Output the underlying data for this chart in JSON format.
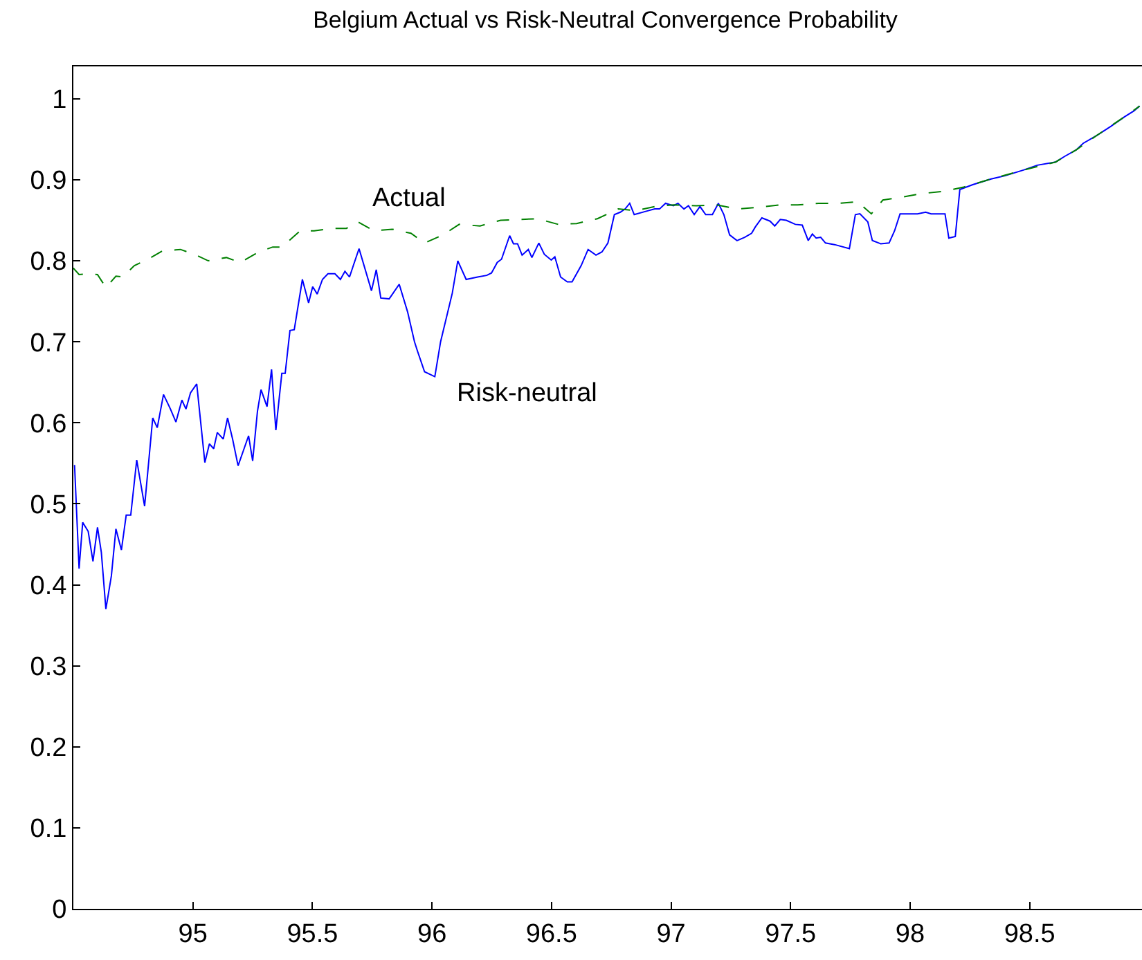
{
  "chart_data": {
    "type": "line",
    "title": "Belgium Actual vs Risk-Neutral Convergence Probability",
    "xlim": [
      94.5,
      98.97
    ],
    "xticks": [
      95,
      95.5,
      96,
      96.5,
      97,
      97.5,
      98,
      98.5
    ],
    "ylim": [
      0,
      1.04
    ],
    "yticks": [
      0,
      0.1,
      0.2,
      0.3,
      0.4,
      0.5,
      0.6,
      0.7,
      0.8,
      0.9,
      1
    ],
    "legend": false,
    "marker": "none",
    "series": [
      {
        "name": "Risk-neutral",
        "color": "#0000ff",
        "line_style": "solid",
        "x": [
          94.505,
          94.524,
          94.539,
          94.562,
          94.582,
          94.601,
          94.617,
          94.636,
          94.659,
          94.678,
          94.701,
          94.721,
          94.74,
          94.765,
          94.798,
          94.832,
          94.851,
          94.877,
          94.906,
          94.929,
          94.954,
          94.971,
          94.99,
          95.016,
          95.05,
          95.069,
          95.087,
          95.102,
          95.127,
          95.145,
          95.166,
          95.189,
          95.214,
          95.233,
          95.25,
          95.27,
          95.285,
          95.31,
          95.329,
          95.347,
          95.372,
          95.386,
          95.406,
          95.424,
          95.458,
          95.484,
          95.501,
          95.52,
          95.542,
          95.565,
          95.594,
          95.617,
          95.636,
          95.655,
          95.695,
          95.747,
          95.767,
          95.786,
          95.821,
          95.863,
          95.898,
          95.927,
          95.94,
          95.969,
          96.012,
          96.036,
          96.085,
          96.108,
          96.143,
          96.191,
          96.229,
          96.249,
          96.273,
          96.291,
          96.325,
          96.341,
          96.358,
          96.377,
          96.403,
          96.418,
          96.447,
          96.47,
          96.499,
          96.514,
          96.538,
          96.566,
          96.586,
          96.624,
          96.653,
          96.686,
          96.711,
          96.736,
          96.763,
          96.788,
          96.808,
          96.827,
          96.846,
          96.894,
          96.932,
          96.952,
          96.977,
          97.01,
          97.029,
          97.054,
          97.073,
          97.097,
          97.121,
          97.145,
          97.173,
          97.198,
          97.221,
          97.245,
          97.276,
          97.308,
          97.337,
          97.353,
          97.38,
          97.414,
          97.434,
          97.457,
          97.482,
          97.52,
          97.549,
          97.574,
          97.591,
          97.607,
          97.626,
          97.646,
          97.684,
          97.746,
          97.771,
          97.79,
          97.823,
          97.842,
          97.877,
          97.912,
          97.935,
          97.958,
          98.031,
          98.065,
          98.088,
          98.146,
          98.162,
          98.189,
          98.208,
          98.262,
          98.339,
          98.397,
          98.474,
          98.532,
          98.609,
          98.647,
          98.695,
          98.724,
          98.782,
          98.84,
          98.898,
          98.936,
          98.96
        ],
        "values": [
          0.548,
          0.42,
          0.477,
          0.466,
          0.429,
          0.471,
          0.44,
          0.37,
          0.411,
          0.469,
          0.443,
          0.486,
          0.486,
          0.554,
          0.497,
          0.606,
          0.594,
          0.635,
          0.617,
          0.601,
          0.628,
          0.617,
          0.637,
          0.648,
          0.551,
          0.574,
          0.568,
          0.588,
          0.58,
          0.606,
          0.58,
          0.547,
          0.568,
          0.584,
          0.553,
          0.614,
          0.641,
          0.62,
          0.666,
          0.591,
          0.661,
          0.661,
          0.714,
          0.715,
          0.777,
          0.748,
          0.768,
          0.759,
          0.777,
          0.784,
          0.784,
          0.777,
          0.787,
          0.78,
          0.815,
          0.763,
          0.789,
          0.754,
          0.753,
          0.771,
          0.737,
          0.7,
          0.688,
          0.663,
          0.657,
          0.7,
          0.76,
          0.8,
          0.777,
          0.78,
          0.782,
          0.785,
          0.798,
          0.802,
          0.831,
          0.821,
          0.821,
          0.807,
          0.814,
          0.804,
          0.822,
          0.808,
          0.801,
          0.805,
          0.78,
          0.774,
          0.774,
          0.794,
          0.814,
          0.807,
          0.811,
          0.822,
          0.857,
          0.86,
          0.864,
          0.871,
          0.857,
          0.861,
          0.864,
          0.864,
          0.871,
          0.868,
          0.871,
          0.864,
          0.868,
          0.857,
          0.867,
          0.857,
          0.857,
          0.871,
          0.857,
          0.832,
          0.825,
          0.829,
          0.834,
          0.842,
          0.853,
          0.849,
          0.843,
          0.851,
          0.85,
          0.845,
          0.844,
          0.825,
          0.833,
          0.828,
          0.829,
          0.822,
          0.82,
          0.815,
          0.857,
          0.858,
          0.848,
          0.825,
          0.821,
          0.822,
          0.837,
          0.858,
          0.858,
          0.86,
          0.858,
          0.858,
          0.828,
          0.83,
          0.888,
          0.894,
          0.901,
          0.905,
          0.912,
          0.918,
          0.922,
          0.929,
          0.937,
          0.945,
          0.955,
          0.966,
          0.978,
          0.985,
          0.991
        ]
      },
      {
        "name": "Actual",
        "color": "#008000",
        "line_style": "dashed",
        "x": [
          94.5,
          94.524,
          94.562,
          94.601,
          94.636,
          94.678,
          94.707,
          94.755,
          94.813,
          94.871,
          94.948,
          95.006,
          95.064,
          95.14,
          95.198,
          95.276,
          95.334,
          95.372,
          95.449,
          95.507,
          95.584,
          95.642,
          95.69,
          95.757,
          95.834,
          95.912,
          95.969,
          96.046,
          96.114,
          96.201,
          96.287,
          96.364,
          96.441,
          96.528,
          96.605,
          96.692,
          96.779,
          96.855,
          96.932,
          97.01,
          97.106,
          97.192,
          97.279,
          97.366,
          97.453,
          97.53,
          97.617,
          97.703,
          97.78,
          97.838,
          97.886,
          97.973,
          98.05,
          98.146,
          98.224,
          98.339,
          98.474,
          98.609,
          98.695,
          98.782,
          98.898,
          98.96
        ],
        "values": [
          0.791,
          0.783,
          0.784,
          0.783,
          0.767,
          0.781,
          0.78,
          0.794,
          0.802,
          0.812,
          0.814,
          0.808,
          0.8,
          0.804,
          0.798,
          0.811,
          0.817,
          0.817,
          0.837,
          0.837,
          0.84,
          0.84,
          0.848,
          0.837,
          0.839,
          0.834,
          0.822,
          0.832,
          0.845,
          0.843,
          0.85,
          0.851,
          0.852,
          0.845,
          0.846,
          0.852,
          0.864,
          0.862,
          0.867,
          0.869,
          0.868,
          0.869,
          0.864,
          0.866,
          0.869,
          0.869,
          0.871,
          0.871,
          0.873,
          0.858,
          0.875,
          0.879,
          0.883,
          0.886,
          0.891,
          0.901,
          0.912,
          0.922,
          0.937,
          0.955,
          0.978,
          0.991
        ]
      }
    ]
  }
}
